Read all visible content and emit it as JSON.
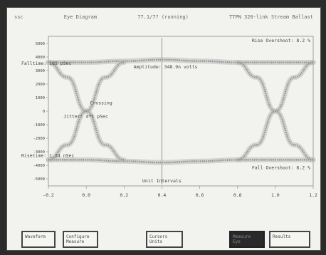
{
  "status_bar": {
    "left": "ssc",
    "title": "Eye Diagram",
    "state": "77.1/7? (running)",
    "right": "TTPN 320-link Stream Ballast"
  },
  "annotations": {
    "rise_overshoot": "Rise Overshoot: 8.2 %",
    "fall_overshoot": "Fall Overshoot: 8.2 %",
    "falltime": "Falltime: 185 pSec",
    "risetime": "Risetime: 1.34 nSec",
    "amplitude": "Amplitude: 348.9n volts",
    "crossing": "Crossing",
    "jitter": "Jitter: 4*1 pSec",
    "xlabel": "Unit Intervals"
  },
  "colors": {
    "screen": "#f2f2ef",
    "trace": "#8a8a8a",
    "text": "#444444",
    "bezel": "#2b2b2b"
  },
  "chart_data": {
    "type": "line",
    "title": "Eye Diagram",
    "xlabel": "Unit Intervals",
    "ylabel": "",
    "x_ticks": [
      "-0.2",
      "0.0",
      "0.2",
      "0.4",
      "0.6",
      "0.8",
      "1.0",
      "1.2"
    ],
    "xlim": [
      -0.2,
      1.2
    ],
    "y_ticks": [
      "5000",
      "4000",
      "3000",
      "2000",
      "1000",
      "0",
      "-1000",
      "-2000",
      "-3000",
      "-4000",
      "-5000"
    ],
    "ylim": [
      -5000,
      5000
    ],
    "series": [
      {
        "values": [
          [
            -0.2,
            3600
          ],
          [
            0.0,
            3600
          ],
          [
            0.2,
            3700
          ],
          [
            0.4,
            3800
          ],
          [
            0.6,
            3700
          ],
          [
            0.8,
            3600
          ],
          [
            1.0,
            3600
          ],
          [
            1.2,
            3600
          ]
        ]
      },
      {
        "values": [
          [
            -0.2,
            -3600
          ],
          [
            0.0,
            -3600
          ],
          [
            0.2,
            -3700
          ],
          [
            0.4,
            -3800
          ],
          [
            0.6,
            -3700
          ],
          [
            0.8,
            -3600
          ],
          [
            1.0,
            -3600
          ],
          [
            1.2,
            -3600
          ]
        ]
      },
      {
        "values": [
          [
            -0.2,
            3600
          ],
          [
            -0.1,
            2500
          ],
          [
            0.0,
            0
          ],
          [
            0.1,
            -2500
          ],
          [
            0.2,
            -3600
          ]
        ]
      },
      {
        "values": [
          [
            -0.2,
            -3600
          ],
          [
            -0.1,
            -2500
          ],
          [
            0.0,
            0
          ],
          [
            0.1,
            2500
          ],
          [
            0.2,
            3600
          ]
        ]
      },
      {
        "values": [
          [
            0.8,
            3600
          ],
          [
            0.9,
            2500
          ],
          [
            1.0,
            0
          ],
          [
            1.1,
            -2500
          ],
          [
            1.2,
            -3600
          ]
        ]
      },
      {
        "values": [
          [
            0.8,
            -3600
          ],
          [
            0.9,
            -2500
          ],
          [
            1.0,
            0
          ],
          [
            1.1,
            2500
          ],
          [
            1.2,
            3600
          ]
        ]
      }
    ]
  },
  "softkeys": [
    {
      "label_lines": [
        "Waveform"
      ],
      "active": false
    },
    {
      "label_lines": [
        "Configure",
        "Measure"
      ],
      "active": false
    },
    {
      "label_lines": [
        "Cursors",
        "Units"
      ],
      "active": false
    },
    {
      "label_lines": [
        "Measure",
        "Eye"
      ],
      "active": true
    },
    {
      "label_lines": [
        "Results"
      ],
      "active": false
    }
  ]
}
